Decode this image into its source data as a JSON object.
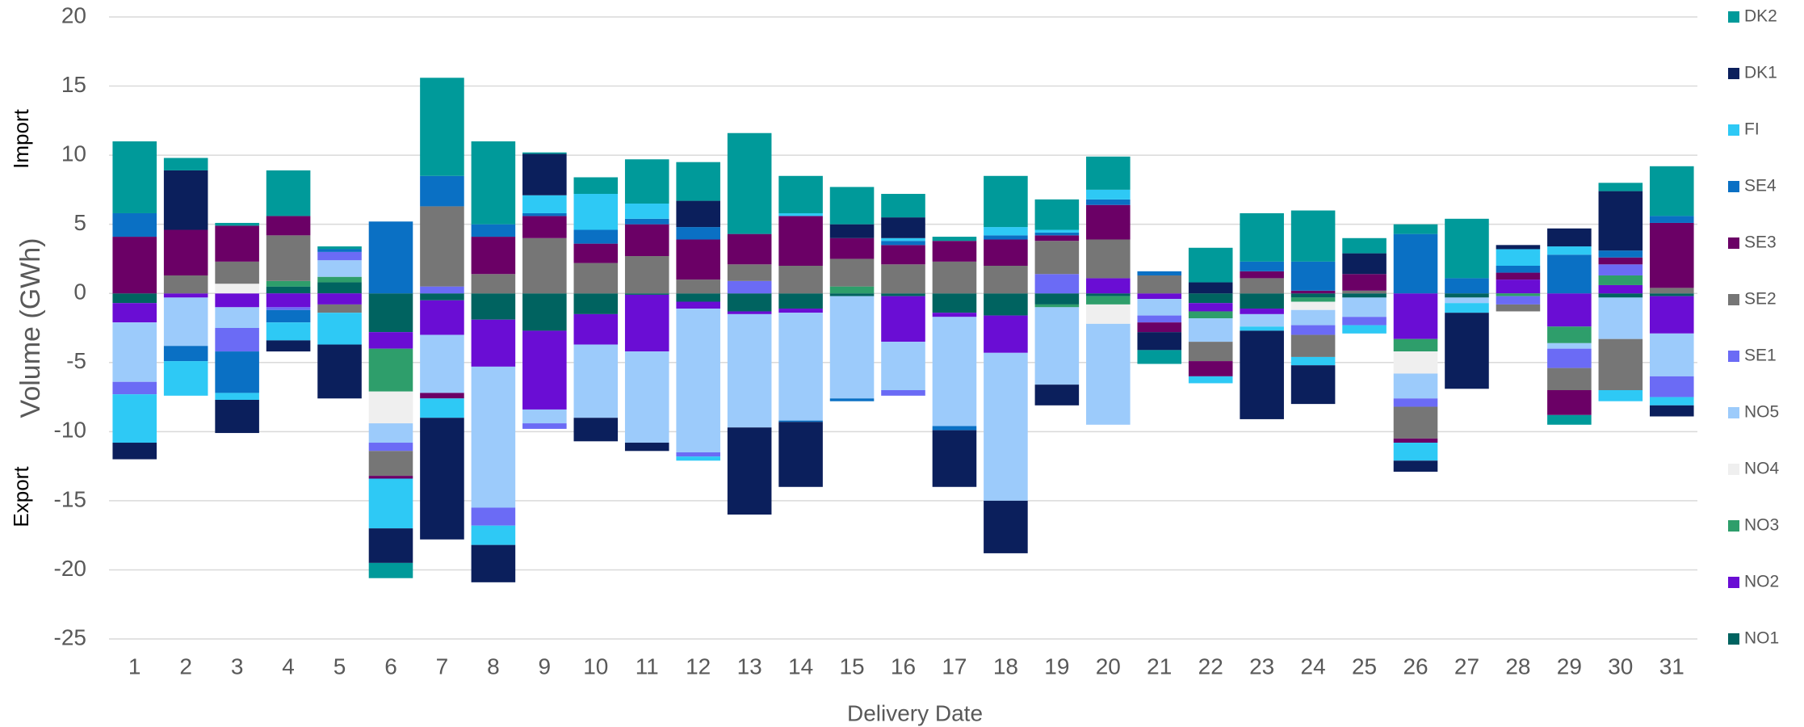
{
  "chart_data": {
    "type": "stacked_bar",
    "y_axis_label": "Volume (GWh)",
    "y_axis_import_label": "Import",
    "y_axis_export_label": "Export",
    "x_axis_label": "Delivery Date",
    "categories": [
      "1",
      "2",
      "3",
      "4",
      "5",
      "6",
      "7",
      "8",
      "9",
      "10",
      "11",
      "12",
      "13",
      "14",
      "15",
      "16",
      "17",
      "18",
      "19",
      "20",
      "21",
      "22",
      "23",
      "24",
      "25",
      "26",
      "27",
      "28",
      "29",
      "30",
      "31"
    ],
    "ylim": [
      -25,
      20
    ],
    "yticks": [
      -25,
      -20,
      -15,
      -10,
      -5,
      0,
      5,
      10,
      15,
      20
    ],
    "grid": true,
    "legend": "right",
    "series": [
      {
        "name": "NO1",
        "color": "#006360",
        "values": [
          -0.7,
          0,
          0,
          0.5,
          0.8,
          -2.8,
          -0.5,
          -1.9,
          -2.7,
          -1.5,
          -0.1,
          -0.6,
          -1.3,
          -1.1,
          -0.2,
          -0.2,
          -1.4,
          -1.6,
          -0.8,
          -0.2,
          0,
          -0.7,
          -1.1,
          -0.3,
          -0.3,
          0,
          -0.3,
          0,
          0,
          -0.3,
          -0.2
        ]
      },
      {
        "name": "NO2",
        "color": "#6a0dd4",
        "values": [
          -1.4,
          -0.3,
          -1.0,
          -1.0,
          -0.8,
          -1.2,
          -2.5,
          -3.4,
          -5.7,
          -2.2,
          -4.1,
          -0.5,
          -0.2,
          -0.3,
          0,
          -3.3,
          -0.3,
          -2.7,
          0,
          1.1,
          -0.4,
          -0.6,
          -0.4,
          0,
          0,
          -3.3,
          0,
          1.0,
          -2.4,
          0.6,
          -2.7
        ]
      },
      {
        "name": "NO3",
        "color": "#2e9e6b",
        "values": [
          0,
          0,
          0,
          0.4,
          0.4,
          -3.1,
          0,
          0,
          0,
          0,
          0,
          0,
          0,
          0,
          0.5,
          0,
          0,
          0,
          -0.2,
          -0.6,
          0,
          -0.5,
          0,
          -0.3,
          0,
          -0.9,
          0,
          -0.2,
          -1.2,
          0.7,
          0
        ]
      },
      {
        "name": "NO4",
        "color": "#efefef",
        "values": [
          0,
          0,
          0.7,
          0,
          0,
          -2.3,
          0,
          0,
          0,
          0,
          0,
          0,
          0,
          0,
          0,
          0,
          0,
          0,
          0,
          -1.4,
          0,
          0,
          0,
          -0.6,
          0,
          -1.6,
          0,
          0,
          0,
          0,
          0
        ]
      },
      {
        "name": "NO5",
        "color": "#9ccbfb",
        "values": [
          -4.3,
          -3.5,
          -1.5,
          0,
          1.2,
          -1.4,
          -4.2,
          -10.2,
          -1.0,
          -5.3,
          -6.6,
          -10.4,
          -8.2,
          -7.8,
          -7.4,
          -3.5,
          -7.9,
          -10.7,
          -5.6,
          -7.3,
          -1.2,
          -1.7,
          -0.9,
          -1.1,
          -1.4,
          -1.8,
          -0.4,
          0,
          -0.4,
          -3.0,
          -3.1
        ]
      },
      {
        "name": "SE1",
        "color": "#6b6bf5",
        "values": [
          -0.9,
          0,
          -1.7,
          -0.2,
          0.6,
          -0.6,
          0.5,
          -1.3,
          -0.4,
          0,
          0,
          -0.3,
          0.9,
          0,
          0,
          -0.4,
          0,
          0,
          1.4,
          0,
          -0.5,
          0,
          0,
          -0.7,
          -0.6,
          -0.6,
          0,
          -0.6,
          -1.4,
          0.8,
          -1.5
        ]
      },
      {
        "name": "SE2",
        "color": "#767676",
        "values": [
          0,
          1.3,
          1.6,
          3.3,
          -0.6,
          -1.8,
          5.8,
          1.4,
          4.0,
          2.2,
          2.7,
          1.0,
          1.2,
          2.0,
          2.0,
          2.1,
          2.3,
          2.0,
          2.4,
          2.8,
          1.3,
          -1.4,
          1.1,
          -1.6,
          0.2,
          -2.3,
          0,
          -0.5,
          -1.6,
          -3.7,
          0.4
        ]
      },
      {
        "name": "SE3",
        "color": "#6b0066",
        "values": [
          4.1,
          3.3,
          2.6,
          1.4,
          0,
          -0.2,
          -0.4,
          2.7,
          1.6,
          1.4,
          2.3,
          2.9,
          2.2,
          3.6,
          1.5,
          1.4,
          1.5,
          1.9,
          0.4,
          2.5,
          -0.7,
          -1.1,
          0.5,
          0.2,
          1.2,
          -0.3,
          0,
          0.5,
          -1.8,
          0.5,
          4.7
        ]
      },
      {
        "name": "SE4",
        "color": "#0a70c4",
        "values": [
          1.7,
          -1.1,
          -3.0,
          -0.9,
          0.2,
          5.2,
          2.2,
          0.9,
          0.2,
          1.0,
          0.4,
          0.9,
          0,
          -0.1,
          -0.2,
          0.3,
          -0.3,
          0.3,
          0.2,
          0.4,
          0.3,
          0,
          0.7,
          2.1,
          0,
          4.3,
          1.1,
          0.5,
          2.8,
          0.5,
          0.5
        ]
      },
      {
        "name": "FI",
        "color": "#2ec9f5",
        "values": [
          -3.5,
          -2.5,
          -0.5,
          -1.3,
          -2.3,
          -3.6,
          -1.4,
          -1.4,
          1.3,
          2.6,
          1.1,
          -0.3,
          0,
          0.2,
          0,
          0.2,
          0,
          0.6,
          0.2,
          0.7,
          0,
          -0.5,
          -0.3,
          -0.6,
          -0.6,
          -1.3,
          -0.7,
          1.2,
          0.6,
          -0.8,
          -0.6
        ]
      },
      {
        "name": "DK1",
        "color": "#0b1f5c",
        "values": [
          -1.2,
          4.3,
          -2.4,
          -0.8,
          -3.9,
          -2.5,
          -8.8,
          -2.7,
          3.0,
          -1.7,
          -0.6,
          1.9,
          -6.3,
          -4.7,
          1.0,
          1.5,
          -4.1,
          -3.8,
          -1.5,
          0,
          -1.3,
          0.8,
          -6.4,
          -2.8,
          1.5,
          -0.8,
          -5.5,
          0.3,
          1.3,
          4.3,
          -0.8
        ]
      },
      {
        "name": "DK2",
        "color": "#009a9a",
        "values": [
          5.2,
          0.9,
          0.2,
          3.3,
          0.2,
          -1.1,
          7.1,
          6.0,
          0.1,
          1.2,
          3.2,
          2.8,
          7.3,
          2.7,
          2.7,
          1.7,
          0.3,
          3.7,
          2.2,
          2.4,
          -1.0,
          2.5,
          3.5,
          3.7,
          1.1,
          0.7,
          4.3,
          0,
          -0.7,
          0.6,
          3.6
        ]
      }
    ]
  }
}
